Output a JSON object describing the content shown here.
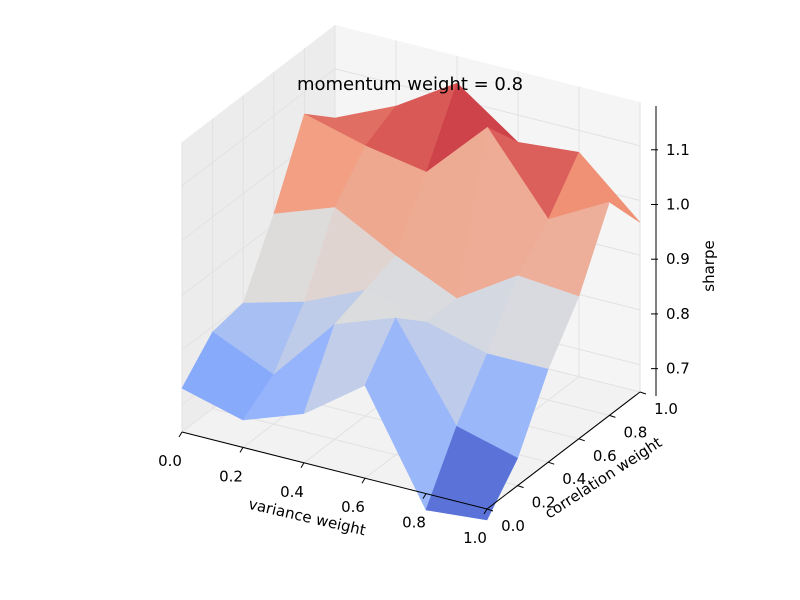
{
  "chart_data": {
    "type": "surface3d",
    "title": "momentum weight = 0.8",
    "xlabel": "variance weight",
    "ylabel": "correlation weight",
    "zlabel": "sharpe",
    "xlim": [
      0.0,
      1.0
    ],
    "ylim": [
      0.0,
      1.0
    ],
    "zlim": [
      0.65,
      1.18
    ],
    "x_ticks": [
      "0.0",
      "0.2",
      "0.4",
      "0.6",
      "0.8",
      "1.0"
    ],
    "y_ticks": [
      "0.0",
      "0.2",
      "0.4",
      "0.6",
      "0.8",
      "1.0"
    ],
    "z_ticks": [
      "0.7",
      "0.8",
      "0.9",
      "1.0",
      "1.1"
    ],
    "colormap": "coolwarm",
    "grid": true,
    "x": [
      0.0,
      0.2,
      0.4,
      0.6,
      0.8,
      1.0
    ],
    "y": [
      0.0,
      0.2,
      0.4,
      0.6,
      0.8,
      1.0
    ],
    "z": [
      [
        0.73,
        0.7,
        0.74,
        0.82,
        0.62,
        0.63
      ],
      [
        0.79,
        0.74,
        0.86,
        0.9,
        0.73,
        0.7
      ],
      [
        0.8,
        0.83,
        0.88,
        0.85,
        0.82,
        0.82
      ],
      [
        0.92,
        0.96,
        0.9,
        0.85,
        0.92,
        0.91
      ],
      [
        1.06,
        1.03,
        1.01,
        1.12,
        0.98,
        1.04
      ],
      [
        1.01,
        1.06,
        1.13,
        1.05,
        1.06,
        0.96
      ]
    ]
  }
}
